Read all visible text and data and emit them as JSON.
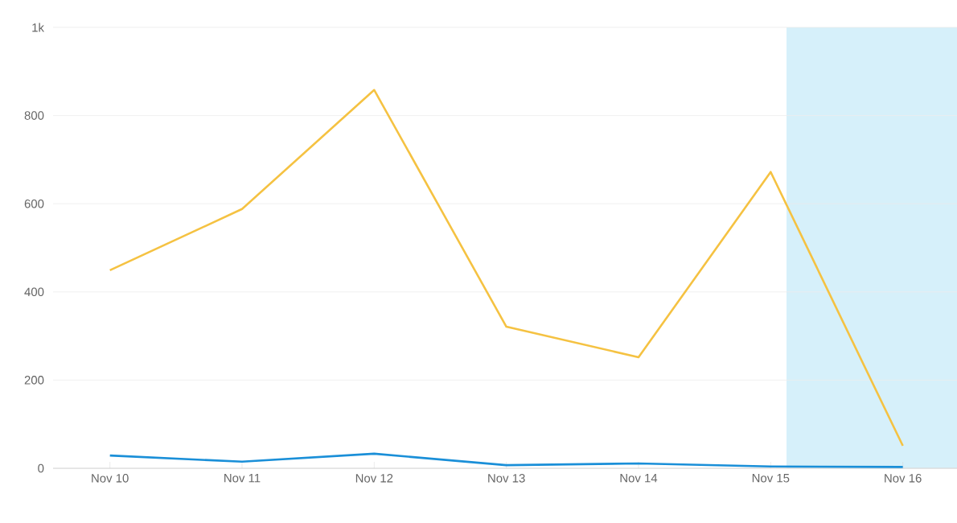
{
  "chart_data": {
    "type": "line",
    "categories": [
      "Nov 10",
      "Nov 11",
      "Nov 12",
      "Nov 13",
      "Nov 14",
      "Nov 15",
      "Nov 16"
    ],
    "series": [
      {
        "color": "#f5c242",
        "values": [
          449,
          588,
          858,
          321,
          252,
          672,
          51
        ]
      },
      {
        "color": "#1a8fd8",
        "values": [
          29,
          15,
          33,
          7,
          11,
          4,
          3
        ]
      }
    ],
    "ylim": [
      0,
      1000
    ],
    "yticks": [
      0,
      200,
      400,
      600,
      800,
      {
        "value": 1000,
        "label": "1k"
      }
    ],
    "grid": "y",
    "marker": "none",
    "line_style": "solid"
  }
}
